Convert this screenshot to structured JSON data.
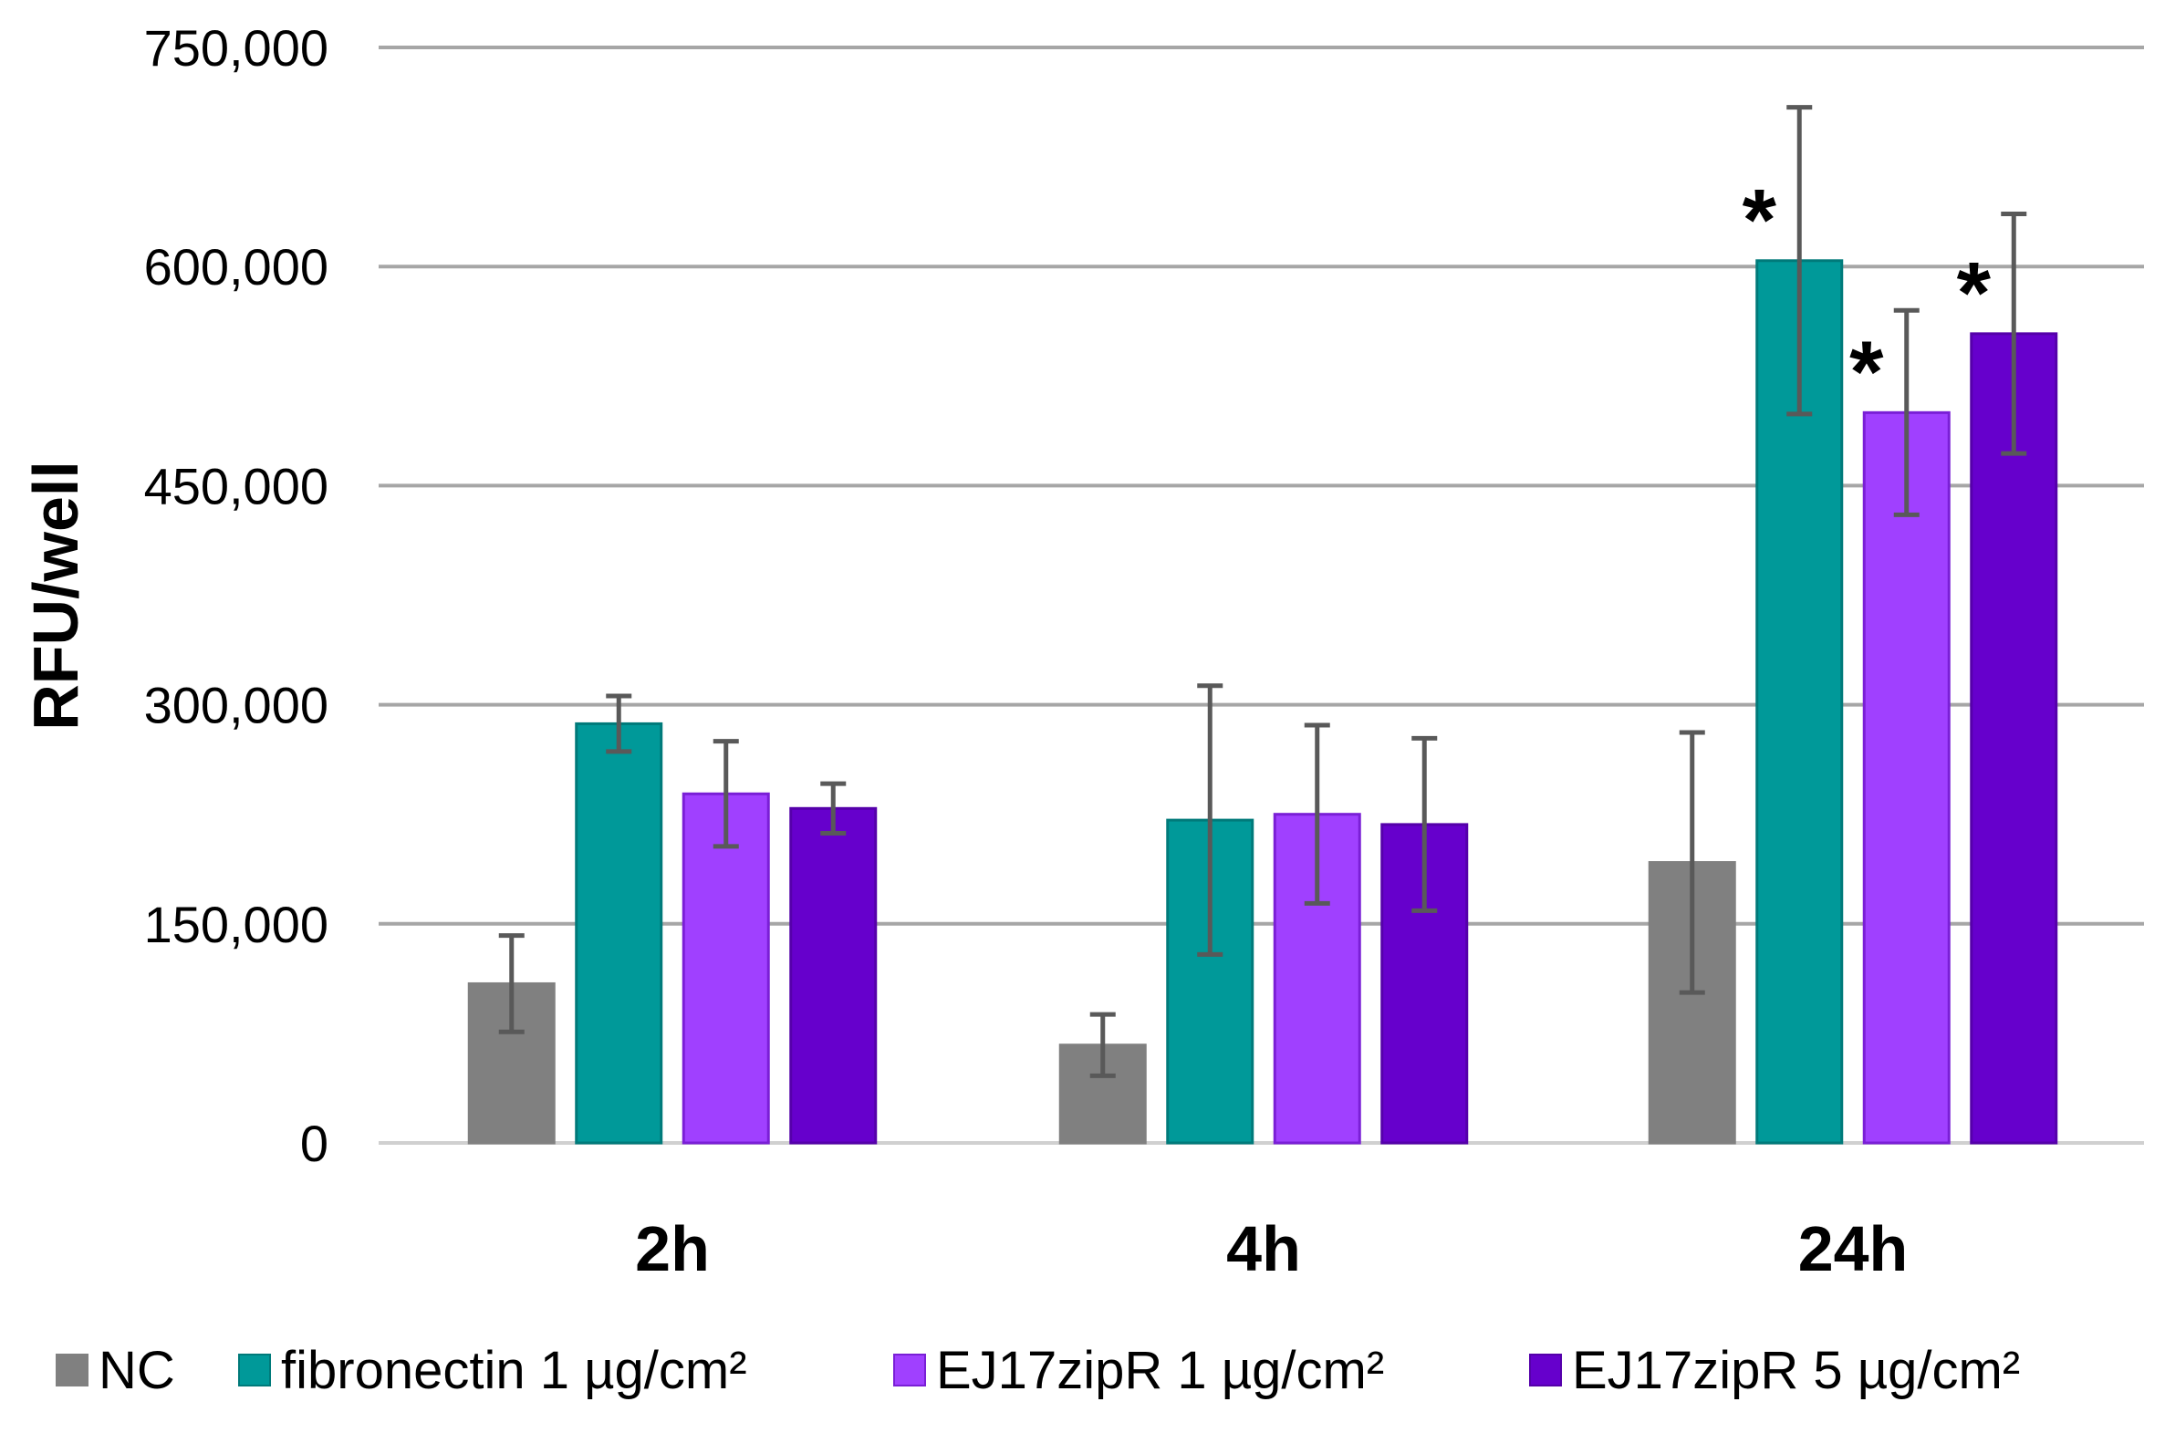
{
  "chart_data": {
    "type": "bar",
    "title": "",
    "xlabel": "",
    "ylabel": "RFU/well",
    "ylim": [
      0,
      750000
    ],
    "yticks": [
      0,
      150000,
      300000,
      450000,
      600000,
      750000
    ],
    "ytick_labels": [
      "0",
      "150,000",
      "300,000",
      "450,000",
      "600,000",
      "750,000"
    ],
    "grid": true,
    "legend_position": "bottom",
    "categories": [
      "2h",
      "4h",
      "24h"
    ],
    "series": [
      {
        "name": "NC",
        "color": "#808080",
        "stroke": "#808080",
        "values": [
          109000,
          67000,
          192000
        ],
        "errors": [
          33000,
          21000,
          89000
        ],
        "significant": [
          false,
          false,
          false
        ]
      },
      {
        "name": "fibronectin 1 µg/cm²",
        "color": "#009999",
        "stroke": "#007a7a",
        "values": [
          287000,
          221000,
          604000
        ],
        "errors": [
          19000,
          92000,
          105000
        ],
        "significant": [
          false,
          false,
          true
        ]
      },
      {
        "name": "EJ17zipR 1 µg/cm²",
        "color": "#a040ff",
        "stroke": "#7a1fd6",
        "values": [
          239000,
          225000,
          500000
        ],
        "errors": [
          36000,
          61000,
          70000
        ],
        "significant": [
          false,
          false,
          true
        ]
      },
      {
        "name": "EJ17zipR 5 µg/cm²",
        "color": "#6600cc",
        "stroke": "#5500aa",
        "values": [
          229000,
          218000,
          554000
        ],
        "errors": [
          17000,
          59000,
          82000
        ],
        "significant": [
          false,
          false,
          true
        ]
      }
    ],
    "significance_marker": "*",
    "error_bar_color": "#595959",
    "grid_color": "#a6a6a6"
  }
}
